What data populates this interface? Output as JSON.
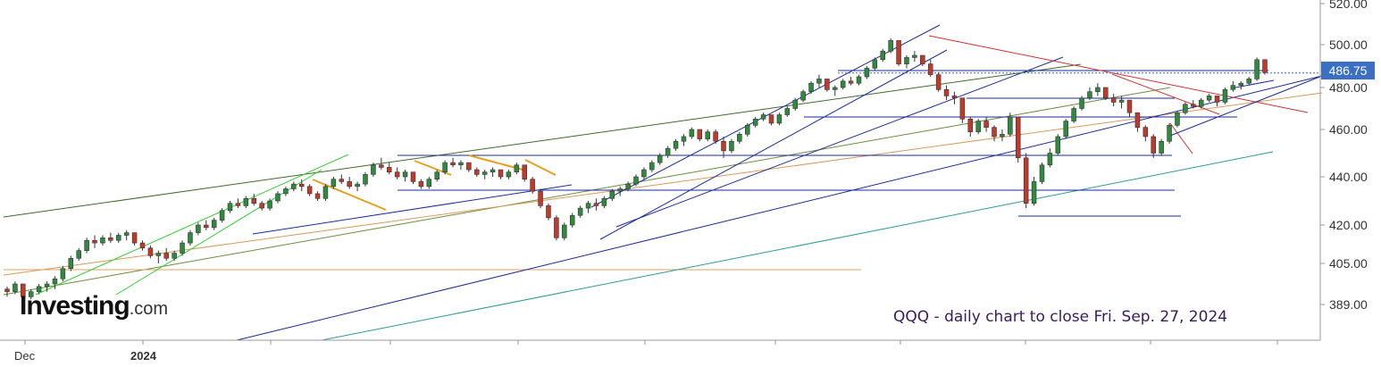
{
  "chart_data": {
    "type": "candlestick",
    "symbol": "QQQ",
    "annotation": "QQQ - daily chart to close Fri. Sep. 27, 2024",
    "logo": {
      "main": "Investing",
      "suffix": ".com"
    },
    "last_price_label": "486.75",
    "last_price": 486.75,
    "y_scale": "log",
    "y_ticks": [
      389.0,
      405.0,
      420.0,
      440.0,
      460.0,
      480.0,
      500.0,
      520.0
    ],
    "y_tick_labels": [
      "389.00",
      "405.00",
      "420.00",
      "440.00",
      "460.00",
      "480.00",
      "500.00",
      "520.00"
    ],
    "x_labels": [
      {
        "label": "Dec",
        "date": "2023-12-01"
      },
      {
        "label": "2024",
        "date": "2024-01-02"
      }
    ],
    "x_range": [
      "2023-11-20",
      "2024-09-27"
    ],
    "grid": false,
    "colors": {
      "up": "#2e8b3e",
      "down": "#c0392b",
      "badge": "#3a6fc4",
      "annotation": "#3b1a5c"
    },
    "candles": [
      [
        395,
        396,
        392,
        394
      ],
      [
        394,
        398,
        393,
        397
      ],
      [
        397,
        396,
        390,
        392
      ],
      [
        392,
        395,
        391,
        394
      ],
      [
        394,
        397,
        393,
        396
      ],
      [
        396,
        398,
        394,
        397
      ],
      [
        397,
        400,
        395,
        399
      ],
      [
        399,
        404,
        398,
        403
      ],
      [
        403,
        408,
        402,
        407
      ],
      [
        407,
        411,
        406,
        410
      ],
      [
        410,
        415,
        409,
        414
      ],
      [
        414,
        416,
        411,
        413
      ],
      [
        413,
        416,
        412,
        415
      ],
      [
        415,
        417,
        413,
        414
      ],
      [
        414,
        417,
        413,
        416
      ],
      [
        416,
        418,
        414,
        417
      ],
      [
        417,
        416,
        412,
        413
      ],
      [
        413,
        414,
        410,
        411
      ],
      [
        411,
        412,
        407,
        408
      ],
      [
        408,
        410,
        405,
        409
      ],
      [
        409,
        411,
        406,
        407
      ],
      [
        407,
        410,
        406,
        409
      ],
      [
        409,
        414,
        408,
        413
      ],
      [
        413,
        418,
        412,
        417
      ],
      [
        417,
        421,
        416,
        420
      ],
      [
        420,
        422,
        418,
        419
      ],
      [
        419,
        423,
        418,
        422
      ],
      [
        422,
        427,
        421,
        426
      ],
      [
        426,
        430,
        425,
        429
      ],
      [
        429,
        431,
        427,
        428
      ],
      [
        428,
        432,
        427,
        431
      ],
      [
        431,
        433,
        428,
        429
      ],
      [
        429,
        430,
        426,
        427
      ],
      [
        427,
        431,
        426,
        430
      ],
      [
        430,
        434,
        429,
        433
      ],
      [
        433,
        436,
        432,
        435
      ],
      [
        435,
        438,
        434,
        437
      ],
      [
        437,
        439,
        434,
        436
      ],
      [
        436,
        437,
        432,
        433
      ],
      [
        433,
        434,
        430,
        431
      ],
      [
        431,
        437,
        430,
        436
      ],
      [
        436,
        440,
        435,
        439
      ],
      [
        439,
        441,
        437,
        438
      ],
      [
        438,
        440,
        435,
        436
      ],
      [
        436,
        438,
        434,
        437
      ],
      [
        437,
        442,
        436,
        441
      ],
      [
        441,
        446,
        440,
        445
      ],
      [
        445,
        448,
        443,
        444
      ],
      [
        444,
        446,
        441,
        442
      ],
      [
        442,
        444,
        439,
        440
      ],
      [
        440,
        443,
        438,
        442
      ],
      [
        442,
        441,
        437,
        438
      ],
      [
        438,
        439,
        435,
        436
      ],
      [
        436,
        440,
        435,
        439
      ],
      [
        439,
        443,
        438,
        442
      ],
      [
        442,
        447,
        441,
        446
      ],
      [
        446,
        448,
        444,
        445
      ],
      [
        445,
        447,
        443,
        446
      ],
      [
        446,
        445,
        442,
        443
      ],
      [
        443,
        444,
        440,
        441
      ],
      [
        441,
        443,
        439,
        442
      ],
      [
        442,
        444,
        440,
        443
      ],
      [
        443,
        442,
        439,
        440
      ],
      [
        440,
        443,
        439,
        442
      ],
      [
        442,
        446,
        441,
        445
      ],
      [
        445,
        444,
        438,
        439
      ],
      [
        439,
        440,
        433,
        434
      ],
      [
        434,
        435,
        427,
        428
      ],
      [
        428,
        429,
        422,
        423
      ],
      [
        423,
        424,
        414,
        415
      ],
      [
        415,
        421,
        414,
        420
      ],
      [
        420,
        425,
        419,
        424
      ],
      [
        424,
        428,
        423,
        427
      ],
      [
        427,
        430,
        425,
        429
      ],
      [
        429,
        431,
        426,
        428
      ],
      [
        428,
        432,
        427,
        431
      ],
      [
        431,
        435,
        430,
        434
      ],
      [
        434,
        436,
        432,
        435
      ],
      [
        435,
        438,
        434,
        437
      ],
      [
        437,
        441,
        436,
        440
      ],
      [
        440,
        444,
        439,
        443
      ],
      [
        443,
        447,
        442,
        446
      ],
      [
        446,
        450,
        445,
        449
      ],
      [
        449,
        453,
        448,
        452
      ],
      [
        452,
        456,
        451,
        455
      ],
      [
        455,
        458,
        453,
        457
      ],
      [
        457,
        461,
        456,
        460
      ],
      [
        460,
        459,
        455,
        456
      ],
      [
        456,
        460,
        455,
        459
      ],
      [
        459,
        460,
        454,
        455
      ],
      [
        455,
        457,
        448,
        451
      ],
      [
        451,
        456,
        450,
        455
      ],
      [
        455,
        459,
        454,
        458
      ],
      [
        458,
        463,
        457,
        462
      ],
      [
        462,
        466,
        461,
        465
      ],
      [
        465,
        468,
        464,
        467
      ],
      [
        467,
        466,
        462,
        463
      ],
      [
        463,
        468,
        462,
        467
      ],
      [
        467,
        471,
        466,
        470
      ],
      [
        470,
        475,
        469,
        474
      ],
      [
        474,
        479,
        473,
        478
      ],
      [
        478,
        483,
        477,
        482
      ],
      [
        482,
        486,
        480,
        484
      ],
      [
        484,
        483,
        478,
        479
      ],
      [
        479,
        481,
        476,
        480
      ],
      [
        480,
        484,
        479,
        483
      ],
      [
        483,
        485,
        481,
        482
      ],
      [
        482,
        486,
        481,
        485
      ],
      [
        485,
        490,
        484,
        489
      ],
      [
        489,
        494,
        488,
        493
      ],
      [
        493,
        498,
        492,
        497
      ],
      [
        497,
        503,
        496,
        502
      ],
      [
        502,
        501,
        490,
        491
      ],
      [
        491,
        495,
        489,
        494
      ],
      [
        494,
        497,
        492,
        495
      ],
      [
        495,
        494,
        490,
        491
      ],
      [
        491,
        493,
        485,
        486
      ],
      [
        486,
        487,
        478,
        479
      ],
      [
        479,
        481,
        474,
        476
      ],
      [
        476,
        478,
        472,
        475
      ],
      [
        475,
        474,
        463,
        465
      ],
      [
        465,
        466,
        457,
        459
      ],
      [
        459,
        465,
        458,
        464
      ],
      [
        464,
        466,
        459,
        461
      ],
      [
        461,
        462,
        455,
        457
      ],
      [
        457,
        460,
        455,
        458
      ],
      [
        458,
        468,
        457,
        466
      ],
      [
        466,
        465,
        446,
        448
      ],
      [
        448,
        450,
        427,
        429
      ],
      [
        429,
        440,
        428,
        438
      ],
      [
        438,
        446,
        437,
        445
      ],
      [
        445,
        452,
        444,
        450
      ],
      [
        450,
        458,
        449,
        457
      ],
      [
        457,
        465,
        456,
        464
      ],
      [
        464,
        471,
        463,
        470
      ],
      [
        470,
        476,
        469,
        475
      ],
      [
        475,
        480,
        474,
        478
      ],
      [
        478,
        482,
        476,
        480
      ],
      [
        480,
        479,
        474,
        475
      ],
      [
        475,
        477,
        471,
        473
      ],
      [
        473,
        476,
        470,
        474
      ],
      [
        474,
        473,
        466,
        468
      ],
      [
        468,
        467,
        459,
        461
      ],
      [
        461,
        462,
        455,
        457
      ],
      [
        457,
        458,
        448,
        450
      ],
      [
        450,
        456,
        449,
        455
      ],
      [
        455,
        463,
        454,
        462
      ],
      [
        462,
        469,
        461,
        468
      ],
      [
        468,
        473,
        467,
        472
      ],
      [
        472,
        474,
        470,
        471
      ],
      [
        471,
        475,
        470,
        474
      ],
      [
        474,
        477,
        473,
        476
      ],
      [
        476,
        475,
        471,
        473
      ],
      [
        473,
        480,
        472,
        479
      ],
      [
        479,
        483,
        478,
        481
      ],
      [
        481,
        483,
        479,
        482
      ],
      [
        482,
        485,
        481,
        484
      ],
      [
        484,
        494,
        483,
        493
      ],
      [
        493,
        492,
        486,
        487
      ]
    ]
  }
}
